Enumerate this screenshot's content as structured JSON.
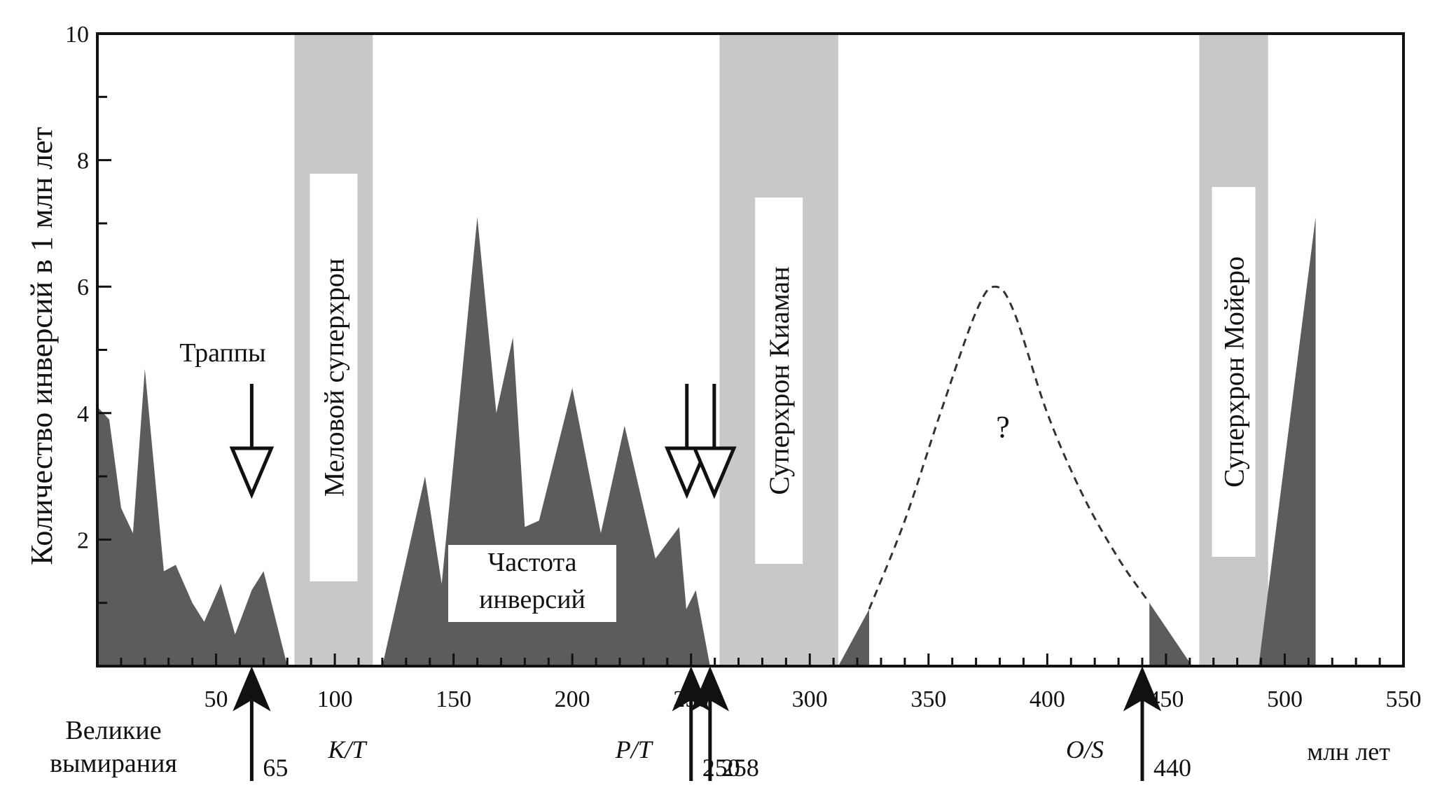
{
  "chart_data": {
    "type": "area",
    "ylabel": "Количество инверсий в 1 млн лет",
    "xlabel": "млн лет",
    "xlim": [
      0,
      550
    ],
    "ylim": [
      0,
      10
    ],
    "x_ticks": [
      50,
      100,
      150,
      200,
      250,
      300,
      350,
      400,
      450,
      500,
      550
    ],
    "y_ticks": [
      2,
      4,
      6,
      8,
      10
    ],
    "grid": false,
    "colors": {
      "area": "#5c5c5c",
      "band": "#c8c8c8",
      "axis": "#111111",
      "dashed": "#333333"
    },
    "series": [
      {
        "name": "Частота инверсий",
        "segments": [
          [
            [
              0,
              4.1
            ],
            [
              5,
              3.9
            ],
            [
              10,
              2.5
            ],
            [
              15,
              2.1
            ],
            [
              20,
              4.7
            ],
            [
              28,
              1.5
            ],
            [
              33,
              1.6
            ],
            [
              40,
              1.0
            ],
            [
              45,
              0.7
            ],
            [
              52,
              1.3
            ],
            [
              58,
              0.5
            ],
            [
              65,
              1.2
            ],
            [
              70,
              1.5
            ],
            [
              80,
              0
            ]
          ],
          [
            [
              120,
              0
            ],
            [
              138,
              3.0
            ],
            [
              145,
              1.3
            ],
            [
              160,
              7.1
            ],
            [
              168,
              4.0
            ],
            [
              175,
              5.2
            ],
            [
              180,
              2.2
            ],
            [
              186,
              2.3
            ],
            [
              200,
              4.4
            ],
            [
              212,
              2.1
            ],
            [
              222,
              3.8
            ],
            [
              235,
              1.7
            ],
            [
              245,
              2.2
            ],
            [
              248,
              0.9
            ],
            [
              252,
              1.2
            ],
            [
              258,
              0
            ]
          ],
          [
            [
              312,
              0
            ],
            [
              325,
              0.9
            ],
            [
              325,
              0
            ]
          ],
          [
            [
              443,
              0
            ],
            [
              443,
              1.0
            ],
            [
              461,
              0
            ]
          ],
          [
            [
              489,
              0
            ],
            [
              513,
              7.1
            ],
            [
              513,
              0
            ]
          ]
        ]
      }
    ],
    "dashed_curve": {
      "points": [
        [
          325,
          0.9
        ],
        [
          340,
          2.3
        ],
        [
          355,
          4.0
        ],
        [
          370,
          5.6
        ],
        [
          378,
          6.0
        ],
        [
          386,
          5.6
        ],
        [
          400,
          4.0
        ],
        [
          415,
          2.7
        ],
        [
          430,
          1.7
        ],
        [
          443,
          1.0
        ]
      ],
      "label": "?"
    },
    "superchrons": [
      {
        "label": "Меловой суперхрон",
        "x": [
          83,
          116
        ]
      },
      {
        "label": "Суперхрон Киаман",
        "x": [
          262,
          312
        ]
      },
      {
        "label": "Суперхрон Мойеро",
        "x": [
          464,
          493
        ]
      }
    ],
    "annotations": {
      "traps_label": "Траппы",
      "frequency_label": [
        "Частота",
        "инверсий"
      ],
      "extinctions_label": [
        "Великие",
        "вымирания"
      ],
      "extinctions": [
        {
          "x": 65,
          "label": "65",
          "boundary": "K/T"
        },
        {
          "x": 250,
          "label": "250",
          "boundary": "P/T"
        },
        {
          "x": 258,
          "label": "258",
          "boundary": ""
        },
        {
          "x": 440,
          "label": "440",
          "boundary": "O/S"
        }
      ],
      "traps_arrows_x": [
        65,
        250,
        258
      ]
    }
  }
}
